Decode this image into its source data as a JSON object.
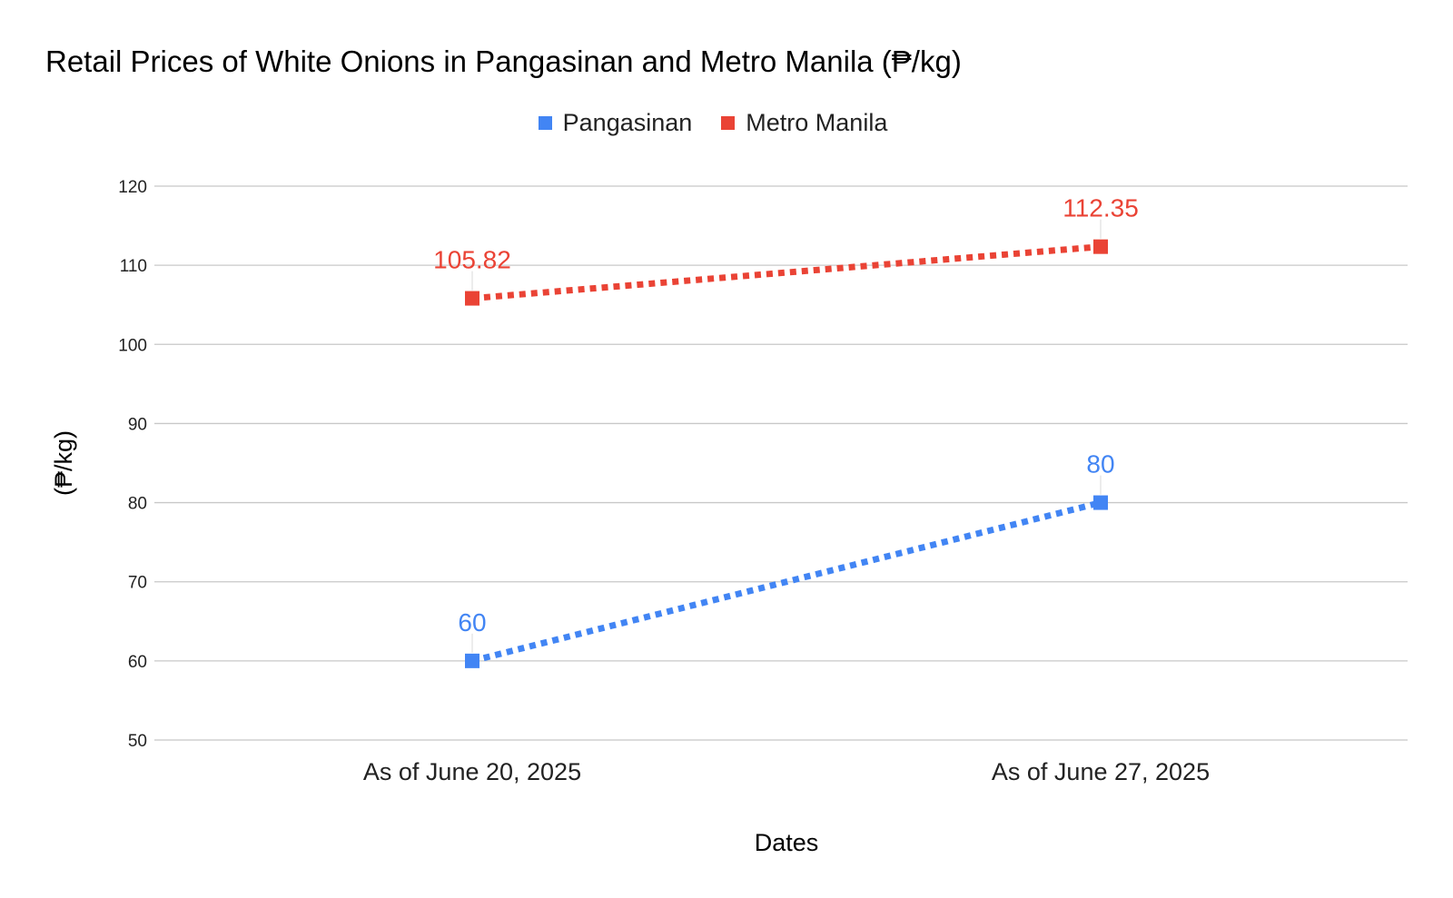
{
  "chart_data": {
    "type": "line",
    "title": "Retail Prices of White Onions in Pangasinan and Metro Manila (₱/kg)",
    "xlabel": "Dates",
    "ylabel": "(₱/kg)",
    "categories": [
      "As of June 20, 2025",
      "As of June 27, 2025"
    ],
    "ylim": [
      50,
      120
    ],
    "yticks": [
      50,
      60,
      70,
      80,
      90,
      100,
      110,
      120
    ],
    "grid": true,
    "legend_position": "top",
    "line_style": "dotted",
    "series": [
      {
        "name": "Pangasinan",
        "color": "#4285F4",
        "values": [
          60,
          80
        ],
        "labels": [
          "60",
          "80"
        ]
      },
      {
        "name": "Metro Manila",
        "color": "#EA4335",
        "values": [
          105.82,
          112.35
        ],
        "labels": [
          "105.82",
          "112.35"
        ]
      }
    ]
  }
}
